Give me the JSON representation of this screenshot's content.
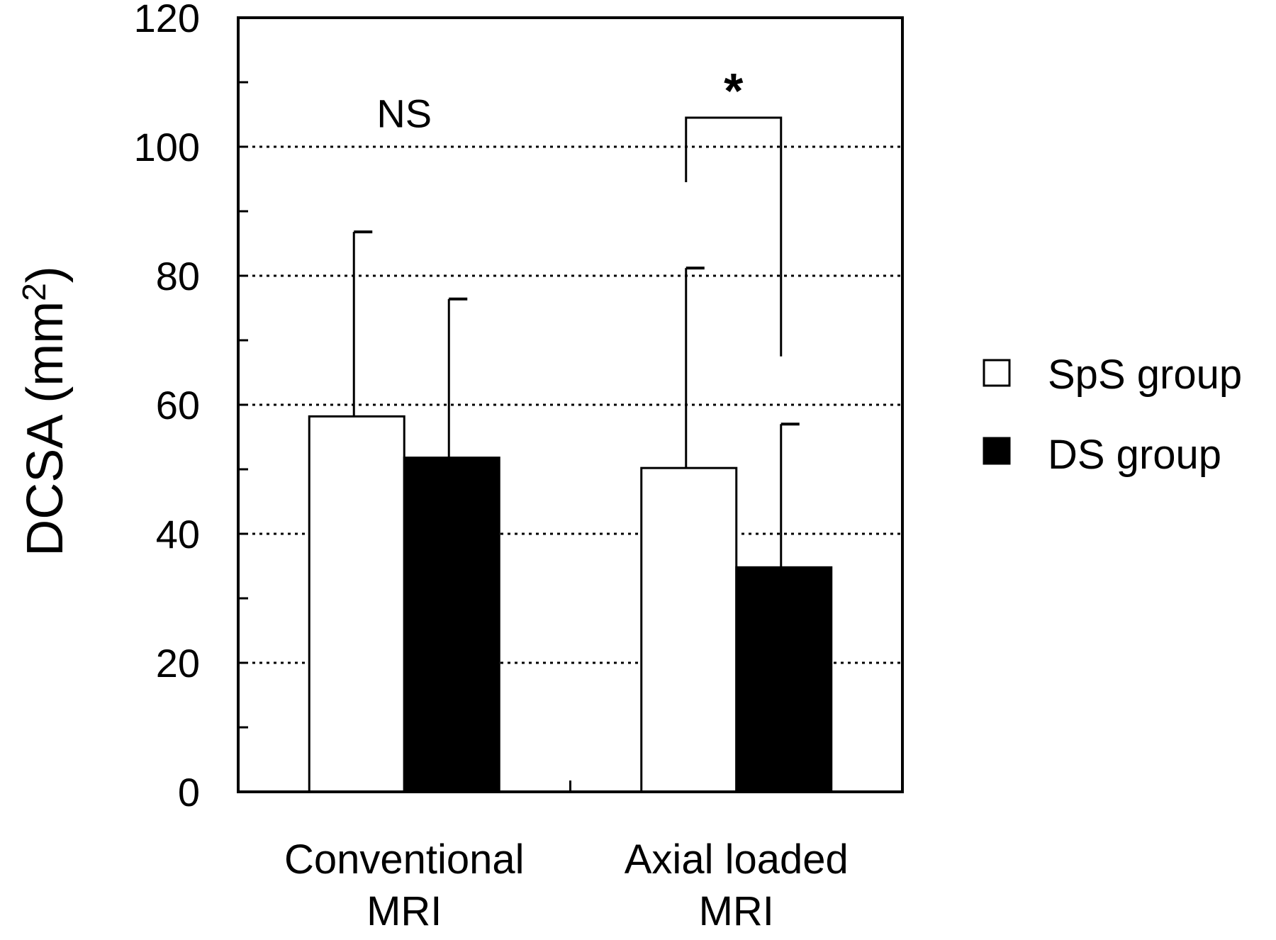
{
  "chart_data": {
    "type": "bar",
    "ylabel": "DCSA (mm",
    "ylabel_sup": "2",
    "ylabel_close": ")",
    "ylim": [
      0,
      120
    ],
    "yticks": [
      0,
      20,
      40,
      60,
      80,
      100,
      120
    ],
    "grid": "horizontal dotted at 20-unit intervals",
    "categories": [
      {
        "line1": "Conventional",
        "line2": "MRI"
      },
      {
        "line1": "Axial loaded",
        "line2": "MRI"
      }
    ],
    "series": [
      {
        "name": "SpS group",
        "fill": "#ffffff",
        "values": [
          58.2,
          50.2
        ],
        "errors": [
          28.6,
          31.0
        ]
      },
      {
        "name": "DS group",
        "fill": "#000000",
        "values": [
          51.8,
          34.8
        ],
        "errors": [
          24.6,
          22.2
        ]
      }
    ],
    "annotations": [
      {
        "category_index": 0,
        "text": "NS"
      },
      {
        "category_index": 1,
        "text": "*"
      }
    ],
    "legend_position": "right"
  }
}
